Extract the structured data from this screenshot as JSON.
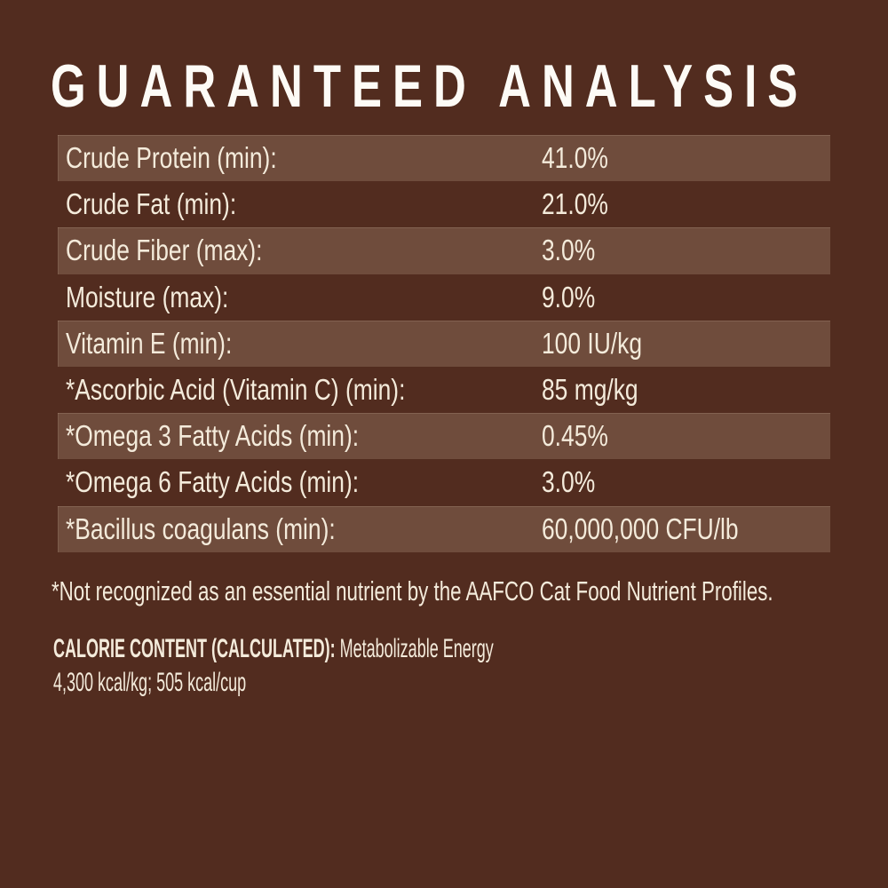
{
  "label": {
    "title": "GUARANTEED ANALYSIS",
    "colors": {
      "background": "#522c1f",
      "row_highlight": "#6f4c3c",
      "text": "#f4ebdb",
      "title_text": "#fdfbf6"
    },
    "analysis_table": {
      "rows": [
        {
          "label": "Crude Protein (min):",
          "value": "41.0%"
        },
        {
          "label": "Crude Fat (min):",
          "value": "21.0%"
        },
        {
          "label": "Crude Fiber (max):",
          "value": "3.0%"
        },
        {
          "label": "Moisture (max):",
          "value": "9.0%"
        },
        {
          "label": "Vitamin E (min):",
          "value": "100 IU/kg"
        },
        {
          "label": "*Ascorbic Acid (Vitamin C) (min):",
          "value": "85 mg/kg"
        },
        {
          "label": "*Omega 3 Fatty Acids (min):",
          "value": "0.45%"
        },
        {
          "label": "*Omega 6 Fatty Acids (min):",
          "value": "3.0%"
        },
        {
          "label": "*Bacillus coagulans (min):",
          "value": "60,000,000 CFU/lb"
        }
      ]
    },
    "footnote": "*Not recognized as an essential nutrient by the AAFCO Cat Food Nutrient Profiles.",
    "calorie_content": {
      "heading": "CALORIE CONTENT (CALCULATED):",
      "description": "Metabolizable Energy",
      "values": "4,300 kcal/kg; 505 kcal/cup"
    }
  }
}
